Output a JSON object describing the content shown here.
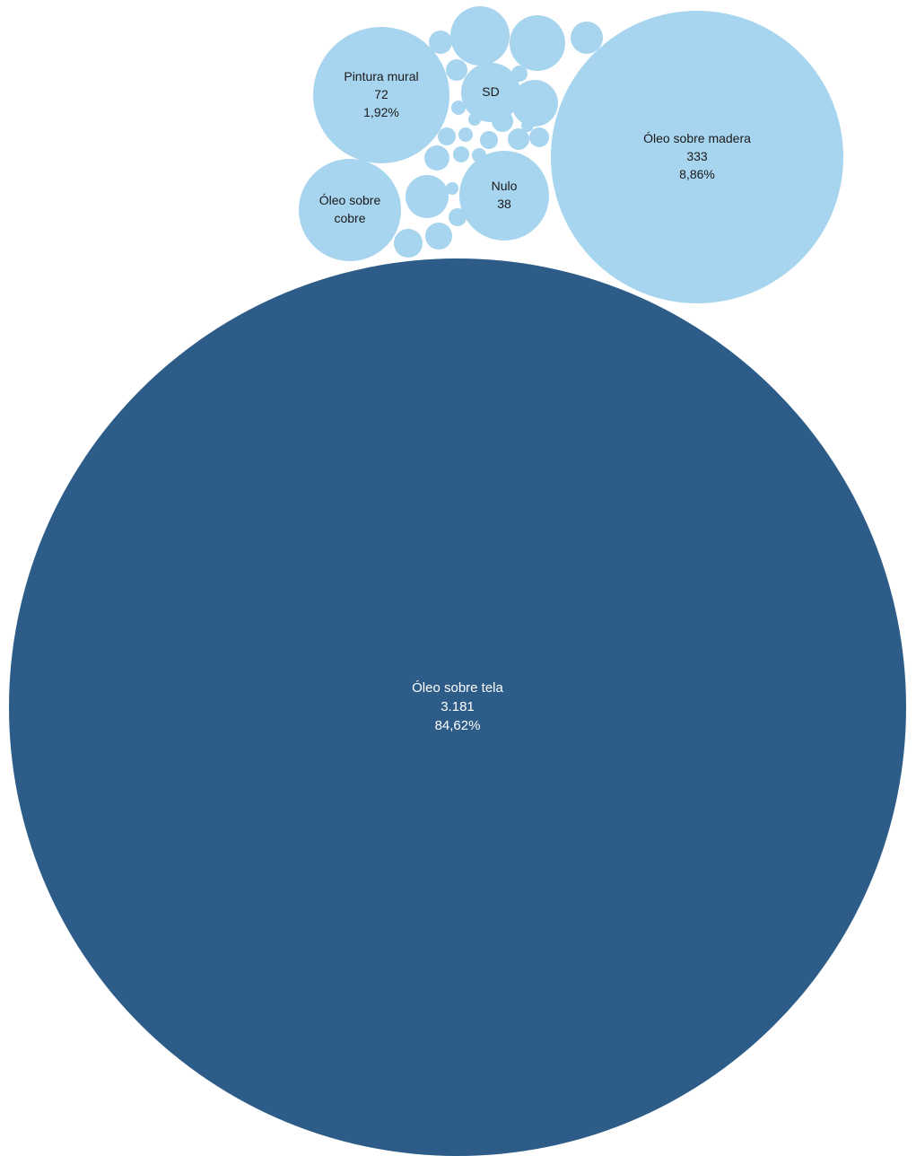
{
  "chart_data": {
    "type": "bubble",
    "title": "",
    "colors": {
      "primary": "#2c5c87",
      "secondary": "#a7d4ee",
      "label_on_primary": "#ffffff",
      "label_on_secondary": "#1a1a1a"
    },
    "items": [
      {
        "label": "Óleo sobre tela",
        "value": 3181,
        "value_text": "3.181",
        "percent_text": "84,62%"
      },
      {
        "label": "Óleo sobre madera",
        "value": 333,
        "value_text": "333",
        "percent_text": "8,86%"
      },
      {
        "label": "Pintura mural",
        "value": 72,
        "value_text": "72",
        "percent_text": "1,92%"
      },
      {
        "label": "Óleo sobre cobre",
        "value": 45
      },
      {
        "label": "Nulo",
        "value": 38,
        "value_text": "38"
      },
      {
        "label": "SD",
        "value": 17
      }
    ],
    "unlabeled_bubbles": 24
  }
}
